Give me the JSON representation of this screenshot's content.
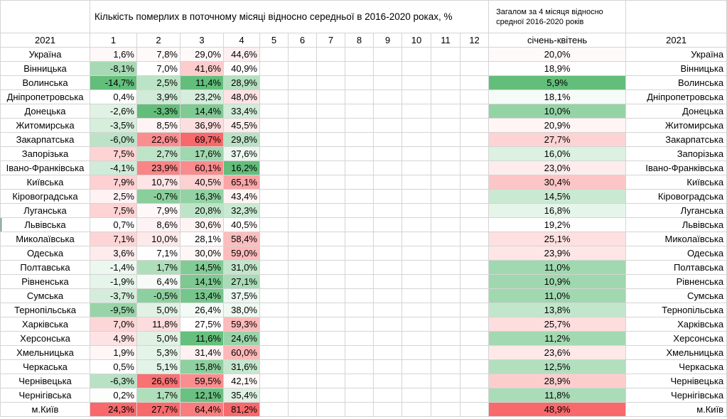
{
  "header": {
    "title": "Кількість померлих в поточному місяці відносно середньої в 2016-2020 роках, %",
    "total_title": "Загалом за 4 місяця відносно средної 2016-2020 років",
    "year_left": "2021",
    "year_right": "2021",
    "months": [
      "1",
      "2",
      "3",
      "4",
      "5",
      "6",
      "7",
      "8",
      "9",
      "10",
      "11",
      "12"
    ],
    "total_label": "січень-квітень"
  },
  "colors": {
    "green_max": "#63be7b",
    "white": "#ffffff",
    "red_max": "#f8696b"
  },
  "chart_data": {
    "type": "heatmap",
    "title": "Кількість померлих в поточному місяці відносно середньої в 2016-2020 роках, %",
    "columns": [
      "1",
      "2",
      "3",
      "4",
      "5",
      "6",
      "7",
      "8",
      "9",
      "10",
      "11",
      "12"
    ],
    "rows": [
      {
        "region": "Україна",
        "values": [
          "1,6%",
          "7,8%",
          "29,0%",
          "44,6%"
        ],
        "total": "20,0%"
      },
      {
        "region": "Вінницька",
        "values": [
          "-8,1%",
          "7,0%",
          "41,6%",
          "40,9%"
        ],
        "total": "18,9%"
      },
      {
        "region": "Волинська",
        "values": [
          "-14,7%",
          "2,5%",
          "11,4%",
          "28,9%"
        ],
        "total": "5,9%"
      },
      {
        "region": "Дніпропетровська",
        "values": [
          "0,4%",
          "3,9%",
          "23,2%",
          "48,0%"
        ],
        "total": "18,1%"
      },
      {
        "region": "Донецька",
        "values": [
          "-2,6%",
          "-3,3%",
          "14,4%",
          "33,4%"
        ],
        "total": "10,0%"
      },
      {
        "region": "Житомирська",
        "values": [
          "-3,5%",
          "8,5%",
          "36,9%",
          "45,5%"
        ],
        "total": "20,9%"
      },
      {
        "region": "Закарпатська",
        "values": [
          "-6,0%",
          "22,6%",
          "69,7%",
          "29,8%"
        ],
        "total": "27,7%"
      },
      {
        "region": "Запорізька",
        "values": [
          "7,5%",
          "2,7%",
          "17,6%",
          "37,6%"
        ],
        "total": "16,0%"
      },
      {
        "region": "Івано-Франківська",
        "values": [
          "-4,1%",
          "23,9%",
          "60,1%",
          "16,2%"
        ],
        "total": "23,0%"
      },
      {
        "region": "Київська",
        "values": [
          "7,9%",
          "10,7%",
          "40,5%",
          "65,1%"
        ],
        "total": "30,4%"
      },
      {
        "region": "Кіровоградська",
        "values": [
          "2,5%",
          "-0,7%",
          "16,3%",
          "43,4%"
        ],
        "total": "14,5%"
      },
      {
        "region": "Луганська",
        "values": [
          "7,5%",
          "7,9%",
          "20,8%",
          "32,3%"
        ],
        "total": "16,8%"
      },
      {
        "region": "Львівська",
        "values": [
          "0,7%",
          "8,6%",
          "30,6%",
          "40,5%"
        ],
        "total": "19,2%"
      },
      {
        "region": "Миколаївська",
        "values": [
          "7,1%",
          "10,0%",
          "28,1%",
          "58,4%"
        ],
        "total": "25,1%"
      },
      {
        "region": "Одеська",
        "values": [
          "3,6%",
          "7,1%",
          "30,0%",
          "59,0%"
        ],
        "total": "23,9%"
      },
      {
        "region": "Полтавська",
        "values": [
          "-1,4%",
          "1,7%",
          "14,5%",
          "31,0%"
        ],
        "total": "11,0%"
      },
      {
        "region": "Рівненська",
        "values": [
          "-1,9%",
          "6,4%",
          "14,1%",
          "27,1%"
        ],
        "total": "10,9%"
      },
      {
        "region": "Сумська",
        "values": [
          "-3,7%",
          "-0,5%",
          "13,4%",
          "37,5%"
        ],
        "total": "11,0%"
      },
      {
        "region": "Тернопільська",
        "values": [
          "-9,5%",
          "5,0%",
          "26,4%",
          "38,0%"
        ],
        "total": "13,8%"
      },
      {
        "region": "Харківська",
        "values": [
          "7,0%",
          "11,8%",
          "27,5%",
          "59,3%"
        ],
        "total": "25,7%"
      },
      {
        "region": "Херсонська",
        "values": [
          "4,9%",
          "5,0%",
          "11,6%",
          "24,6%"
        ],
        "total": "11,2%"
      },
      {
        "region": "Хмельницька",
        "values": [
          "1,9%",
          "5,3%",
          "31,4%",
          "60,0%"
        ],
        "total": "23,6%"
      },
      {
        "region": "Черкаська",
        "values": [
          "0,5%",
          "5,1%",
          "15,8%",
          "31,6%"
        ],
        "total": "12,5%"
      },
      {
        "region": "Чернівецька",
        "values": [
          "-6,3%",
          "26,6%",
          "59,5%",
          "42,1%"
        ],
        "total": "28,9%"
      },
      {
        "region": "Чернігівська",
        "values": [
          "0,2%",
          "1,7%",
          "12,1%",
          "35,4%"
        ],
        "total": "11,8%"
      },
      {
        "region": "м.Київ",
        "values": [
          "24,3%",
          "27,7%",
          "64,4%",
          "81,2%"
        ],
        "total": "48,9%"
      }
    ]
  }
}
